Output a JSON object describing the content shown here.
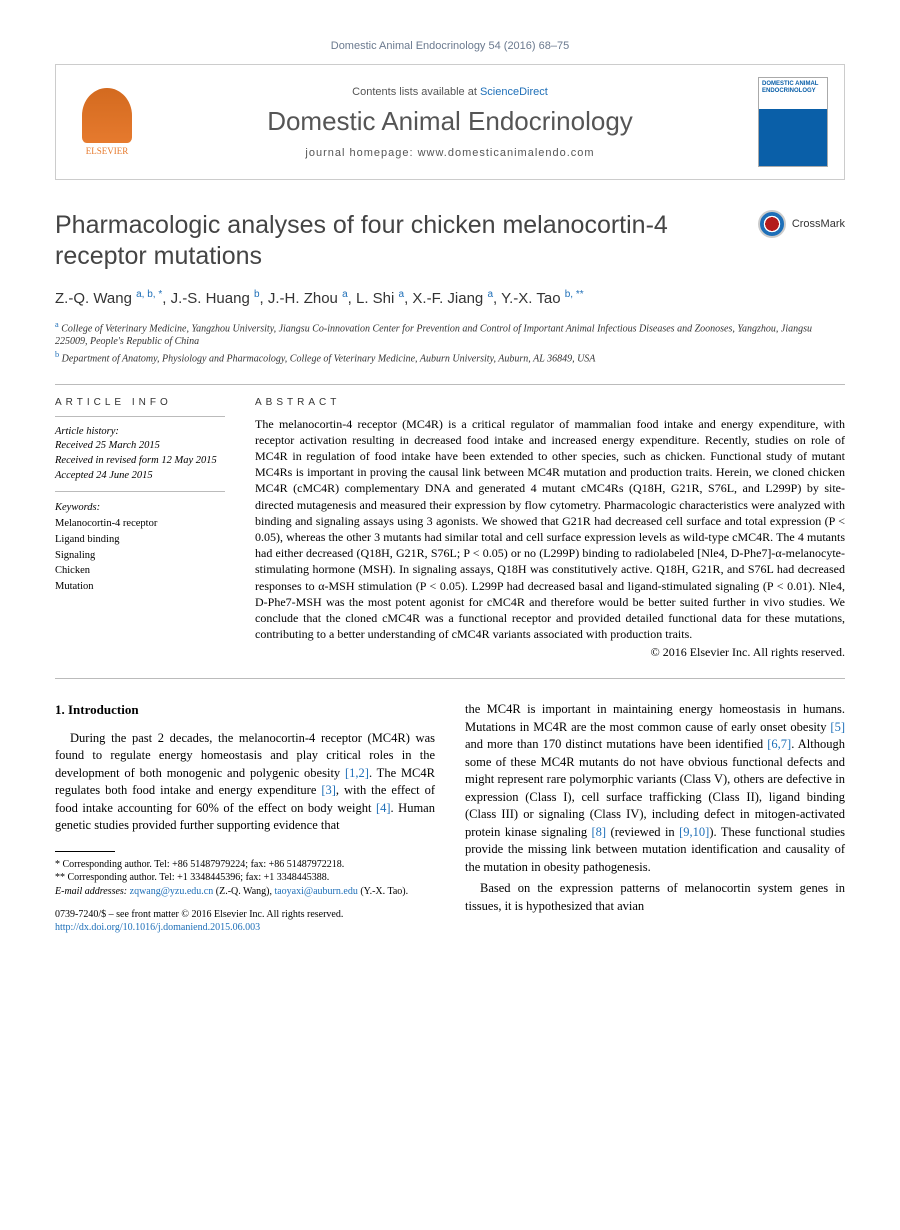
{
  "running_head": "Domestic Animal Endocrinology 54 (2016) 68–75",
  "header": {
    "contents_pre": "Contents lists available at ",
    "contents_link": "ScienceDirect",
    "journal": "Domestic Animal Endocrinology",
    "homepage_pre": "journal homepage: ",
    "homepage": "www.domesticanimalendo.com",
    "elsevier": "ELSEVIER",
    "cover_text": "DOMESTIC ANIMAL ENDOCRINOLOGY"
  },
  "title": "Pharmacologic analyses of four chicken melanocortin-4 receptor mutations",
  "crossmark": "CrossMark",
  "authors_html": "Z.-Q. Wang <sup>a, b, *</sup>, J.-S. Huang <sup>b</sup>, J.-H. Zhou <sup>a</sup>, L. Shi <sup>a</sup>, X.-F. Jiang <sup>a</sup>, Y.-X. Tao <sup>b, **</sup>",
  "affiliations": [
    {
      "sup": "a",
      "text": "College of Veterinary Medicine, Yangzhou University, Jiangsu Co-innovation Center for Prevention and Control of Important Animal Infectious Diseases and Zoonoses, Yangzhou, Jiangsu 225009, People's Republic of China"
    },
    {
      "sup": "b",
      "text": "Department of Anatomy, Physiology and Pharmacology, College of Veterinary Medicine, Auburn University, Auburn, AL 36849, USA"
    }
  ],
  "article_info": {
    "heading": "ARTICLE INFO",
    "history_label": "Article history:",
    "received": "Received 25 March 2015",
    "revised": "Received in revised form 12 May 2015",
    "accepted": "Accepted 24 June 2015",
    "keywords_label": "Keywords:",
    "keywords": [
      "Melanocortin-4 receptor",
      "Ligand binding",
      "Signaling",
      "Chicken",
      "Mutation"
    ]
  },
  "abstract": {
    "heading": "ABSTRACT",
    "text": "The melanocortin-4 receptor (MC4R) is a critical regulator of mammalian food intake and energy expenditure, with receptor activation resulting in decreased food intake and increased energy expenditure. Recently, studies on role of MC4R in regulation of food intake have been extended to other species, such as chicken. Functional study of mutant MC4Rs is important in proving the causal link between MC4R mutation and production traits. Herein, we cloned chicken MC4R (cMC4R) complementary DNA and generated 4 mutant cMC4Rs (Q18H, G21R, S76L, and L299P) by site-directed mutagenesis and measured their expression by flow cytometry. Pharmacologic characteristics were analyzed with binding and signaling assays using 3 agonists. We showed that G21R had decreased cell surface and total expression (P < 0.05), whereas the other 3 mutants had similar total and cell surface expression levels as wild-type cMC4R. The 4 mutants had either decreased (Q18H, G21R, S76L; P < 0.05) or no (L299P) binding to radiolabeled [Nle4, D-Phe7]-α-melanocyte-stimulating hormone (MSH). In signaling assays, Q18H was constitutively active. Q18H, G21R, and S76L had decreased responses to α-MSH stimulation (P < 0.05). L299P had decreased basal and ligand-stimulated signaling (P < 0.01). Nle4, D-Phe7-MSH was the most potent agonist for cMC4R and therefore would be better suited further in vivo studies. We conclude that the cloned cMC4R was a functional receptor and provided detailed functional data for these mutations, contributing to a better understanding of cMC4R variants associated with production traits.",
    "copyright": "© 2016 Elsevier Inc. All rights reserved."
  },
  "intro": {
    "heading": "1. Introduction",
    "col1": "During the past 2 decades, the melanocortin-4 receptor (MC4R) was found to regulate energy homeostasis and play critical roles in the development of both monogenic and polygenic obesity [1,2]. The MC4R regulates both food intake and energy expenditure [3], with the effect of food intake accounting for 60% of the effect on body weight [4]. Human genetic studies provided further supporting evidence that",
    "col2_p1": "the MC4R is important in maintaining energy homeostasis in humans. Mutations in MC4R are the most common cause of early onset obesity [5] and more than 170 distinct mutations have been identified [6,7]. Although some of these MC4R mutants do not have obvious functional defects and might represent rare polymorphic variants (Class V), others are defective in expression (Class I), cell surface trafficking (Class II), ligand binding (Class III) or signaling (Class IV), including defect in mitogen-activated protein kinase signaling [8] (reviewed in [9,10]). These functional studies provide the missing link between mutation identification and causality of the mutation in obesity pathogenesis.",
    "col2_p2": "Based on the expression patterns of melanocortin system genes in tissues, it is hypothesized that avian"
  },
  "footnotes": {
    "c1": "* Corresponding author. Tel: +86 51487979224; fax: +86 51487972218.",
    "c2": "** Corresponding author. Tel: +1 3348445396; fax: +1 3348445388.",
    "email_label": "E-mail addresses:",
    "email1": "zqwang@yzu.edu.cn",
    "email1_who": " (Z.-Q. Wang), ",
    "email2": "taoyaxi@auburn.edu",
    "email2_who": " (Y.-X. Tao)."
  },
  "doi": {
    "line1": "0739-7240/$ – see front matter © 2016 Elsevier Inc. All rights reserved.",
    "url": "http://dx.doi.org/10.1016/j.domaniend.2015.06.003"
  }
}
